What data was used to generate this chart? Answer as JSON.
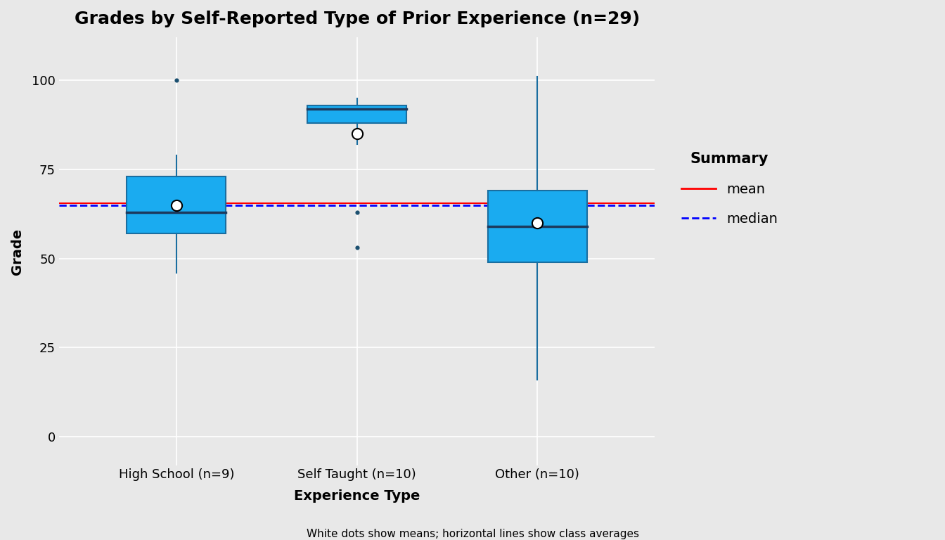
{
  "title": "Grades by Self-Reported Type of Prior Experience (n=29)",
  "xlabel": "Experience Type",
  "ylabel": "Grade",
  "subtitle": "White dots show means; horizontal lines show class averages",
  "categories": [
    "High School (n=9)",
    "Self Taught (n=10)",
    "Other (n=10)"
  ],
  "box_data": {
    "High School (n=9)": {
      "q1": 57,
      "median": 63,
      "q3": 73,
      "whisker_low": 46,
      "whisker_high": 79,
      "mean": 65,
      "outliers": [
        100
      ]
    },
    "Self Taught (n=10)": {
      "q1": 88,
      "median": 92,
      "q3": 93,
      "whisker_low": 82,
      "whisker_high": 95,
      "mean": 85,
      "outliers": [
        63,
        53
      ]
    },
    "Other (n=10)": {
      "q1": 49,
      "median": 59,
      "q3": 69,
      "whisker_low": 16,
      "whisker_high": 101,
      "mean": 60,
      "outliers": []
    }
  },
  "class_mean": 65.5,
  "class_median": 65.0,
  "box_color": "#1AABF0",
  "box_edge_color": "#1A6EA0",
  "whisker_color": "#1A6EA0",
  "median_line_color": "#1C3A5E",
  "mean_dot_color": "white",
  "mean_dot_edge_color": "black",
  "outlier_color": "#1C5070",
  "class_mean_color": "red",
  "class_median_color": "blue",
  "background_color": "#E8E8E8",
  "fig_facecolor": "#E8E8E8",
  "ylim": [
    -8,
    112
  ],
  "yticks": [
    0,
    25,
    50,
    75,
    100
  ],
  "box_width": 0.55,
  "title_fontsize": 18,
  "label_fontsize": 14,
  "tick_fontsize": 13
}
